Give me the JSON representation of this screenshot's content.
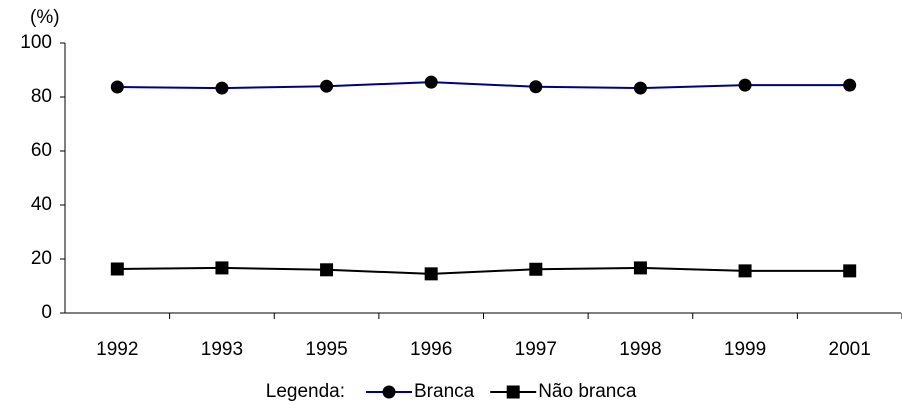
{
  "chart_data": {
    "type": "line",
    "y_label": "(%)",
    "categories": [
      "1992",
      "1993",
      "1995",
      "1996",
      "1997",
      "1998",
      "1999",
      "2001"
    ],
    "series": [
      {
        "name": "Branca",
        "color": "#000080",
        "marker": "circle",
        "values": [
          83.7,
          83.3,
          84.0,
          85.5,
          83.8,
          83.3,
          84.4,
          84.4
        ]
      },
      {
        "name": "Não branca",
        "color": "#000000",
        "marker": "square",
        "values": [
          16.3,
          16.7,
          16.0,
          14.5,
          16.2,
          16.7,
          15.6,
          15.6
        ]
      }
    ],
    "marker_color": "#000000",
    "legend_title": "Legenda:",
    "legend_position": "bottom",
    "ylim": [
      0,
      100
    ],
    "yticks": [
      0,
      20,
      40,
      60,
      80,
      100
    ],
    "grid": false
  }
}
